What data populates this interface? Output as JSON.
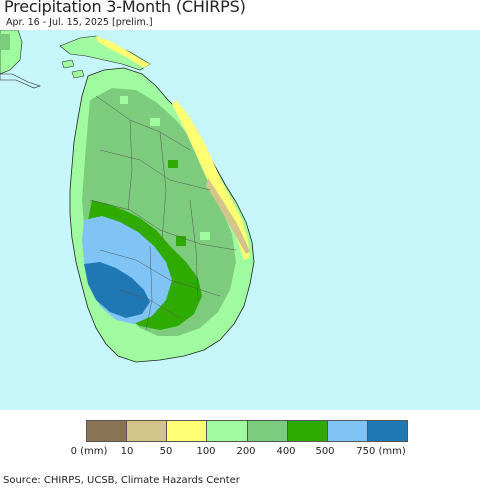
{
  "title": "Precipitation 3-Month (CHIRPS)",
  "subtitle": "Apr. 16 - Jul. 15, 2025 [prelim.]",
  "legend": {
    "colors": [
      "#8B7355",
      "#D2C48A",
      "#FFFF73",
      "#A0FAA0",
      "#7DCC7D",
      "#2EAA00",
      "#80C4F5",
      "#1F78B4"
    ],
    "labels": [
      "0 (mm)",
      "10",
      "50",
      "100",
      "200",
      "400",
      "500",
      "750 (mm)"
    ]
  },
  "colors": {
    "ocean": "#C6F6FA",
    "land_mainland": "#A5F1A5",
    "region_dry": "#FFFF73",
    "region_very_dry": "#D2C48A",
    "region_moderate": "#7DCC7D",
    "region_wet": "#2EAA00",
    "region_very_wet": "#80C4F5",
    "region_wettest": "#1F78B4"
  },
  "source": "Source: CHIRPS, UCSB, Climate Hazards Center"
}
